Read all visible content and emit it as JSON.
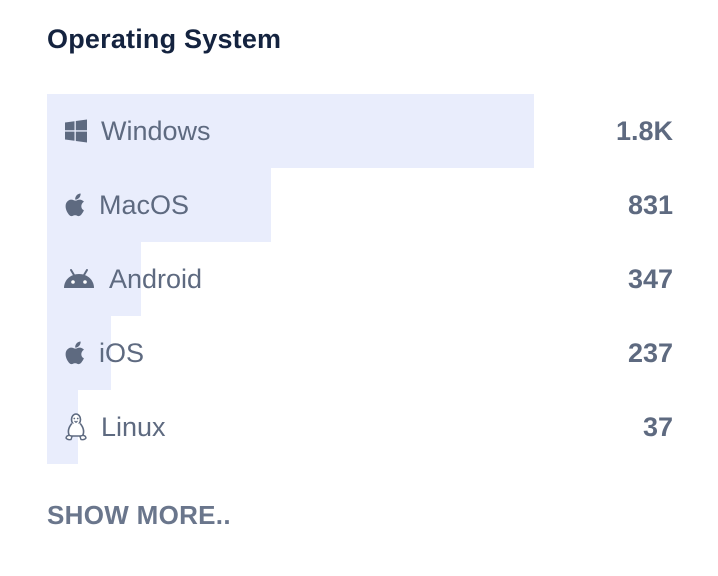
{
  "panel": {
    "title": "Operating System",
    "show_more_label": "SHOW MORE..",
    "bar_color": "#e9edfc",
    "text_color": "#5e6a80",
    "title_color": "#14233f"
  },
  "items": [
    {
      "label": "Windows",
      "value": "1.8K",
      "icon": "windows-icon",
      "share": 0.778
    },
    {
      "label": "MacOS",
      "value": "831",
      "icon": "apple-icon",
      "share": 0.358
    },
    {
      "label": "Android",
      "value": "347",
      "icon": "android-icon",
      "share": 0.15
    },
    {
      "label": "iOS",
      "value": "237",
      "icon": "apple-icon",
      "share": 0.102
    },
    {
      "label": "Linux",
      "value": "37",
      "icon": "linux-icon",
      "share": 0.05
    }
  ]
}
